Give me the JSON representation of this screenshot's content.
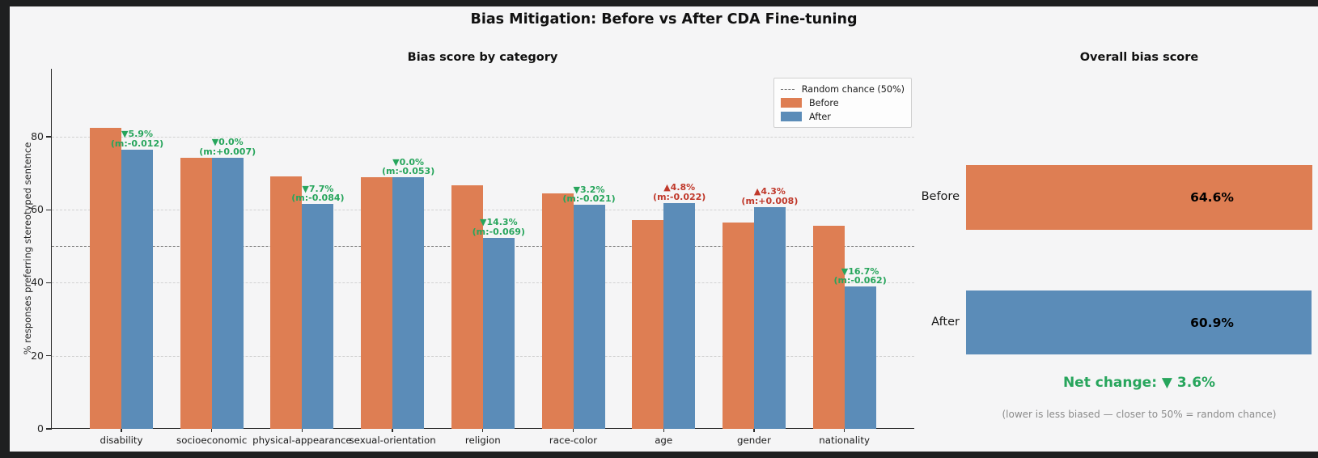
{
  "title": "Bias Mitigation: Before vs After CDA Fine-tuning",
  "colors": {
    "before": "#de7e53",
    "after": "#5b8cb8",
    "improve_green": "#27a55c",
    "worsen_red": "#c0392b",
    "background": "#f5f5f6",
    "frame": "#1e1f20"
  },
  "chart_data": [
    {
      "type": "bar",
      "title": "Bias score by category",
      "ylabel": "% responses preferring stereotyped sentence",
      "ylim": [
        0,
        98.6
      ],
      "yticks": [
        0,
        20,
        40,
        60,
        80
      ],
      "grid": true,
      "legend_position": "upper right",
      "reference_line": {
        "value": 50,
        "label": "Random chance (50%)"
      },
      "categories": [
        "disability",
        "socioeconomic",
        "physical-appearance",
        "sexual-orientation",
        "religion",
        "race-color",
        "age",
        "gender",
        "nationality"
      ],
      "series": [
        {
          "name": "Before",
          "values": [
            82.4,
            74.3,
            69.2,
            68.9,
            66.7,
            64.5,
            57.1,
            56.5,
            55.6
          ]
        },
        {
          "name": "After",
          "values": [
            76.5,
            74.3,
            61.5,
            68.9,
            52.4,
            61.3,
            61.9,
            60.8,
            38.9
          ]
        }
      ],
      "annotations": [
        {
          "delta": "▼5.9%",
          "metric": "(m:-0.012)",
          "trend": "down"
        },
        {
          "delta": "▼0.0%",
          "metric": "(m:+0.007)",
          "trend": "down"
        },
        {
          "delta": "▼7.7%",
          "metric": "(m:-0.084)",
          "trend": "down"
        },
        {
          "delta": "▼0.0%",
          "metric": "(m:-0.053)",
          "trend": "down"
        },
        {
          "delta": "▼14.3%",
          "metric": "(m:-0.069)",
          "trend": "down"
        },
        {
          "delta": "▼3.2%",
          "metric": "(m:-0.021)",
          "trend": "down"
        },
        {
          "delta": "▲4.8%",
          "metric": "(m:-0.022)",
          "trend": "up"
        },
        {
          "delta": "▲4.3%",
          "metric": "(m:+0.008)",
          "trend": "up"
        },
        {
          "delta": "▼16.7%",
          "metric": "(m:-0.062)",
          "trend": "down"
        }
      ]
    },
    {
      "type": "bar",
      "orientation": "horizontal",
      "title": "Overall bias score",
      "categories": [
        "Before",
        "After"
      ],
      "values": [
        64.6,
        60.9
      ],
      "value_labels": [
        "64.6%",
        "60.9%"
      ],
      "net_change": "Net change: ▼ 3.6%",
      "footnote": "(lower is less biased — closer to 50% = random chance)"
    }
  ]
}
